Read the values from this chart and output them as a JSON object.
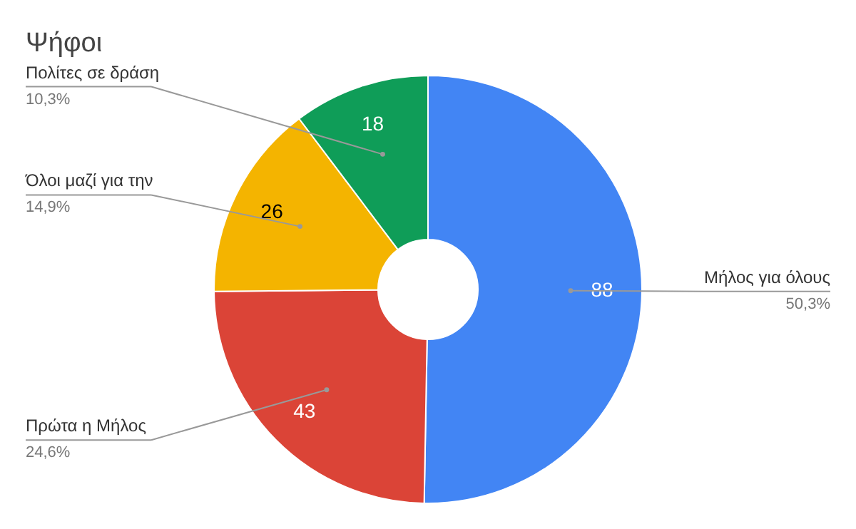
{
  "chart_data": {
    "type": "donut",
    "title": "Ψήφοι",
    "categories": [
      "Μήλος για όλους",
      "Πρώτα η Μήλος",
      "Όλοι μαζί για την",
      "Πολίτες σε δράση"
    ],
    "values": [
      88,
      43,
      26,
      18
    ],
    "colors": [
      "#4285f4",
      "#db4437",
      "#f4b400",
      "#0f9d58"
    ],
    "annotations": [
      "50,3%",
      "24,6%",
      "14,9%",
      "10,3%"
    ],
    "data_labels": true,
    "legend": false
  }
}
